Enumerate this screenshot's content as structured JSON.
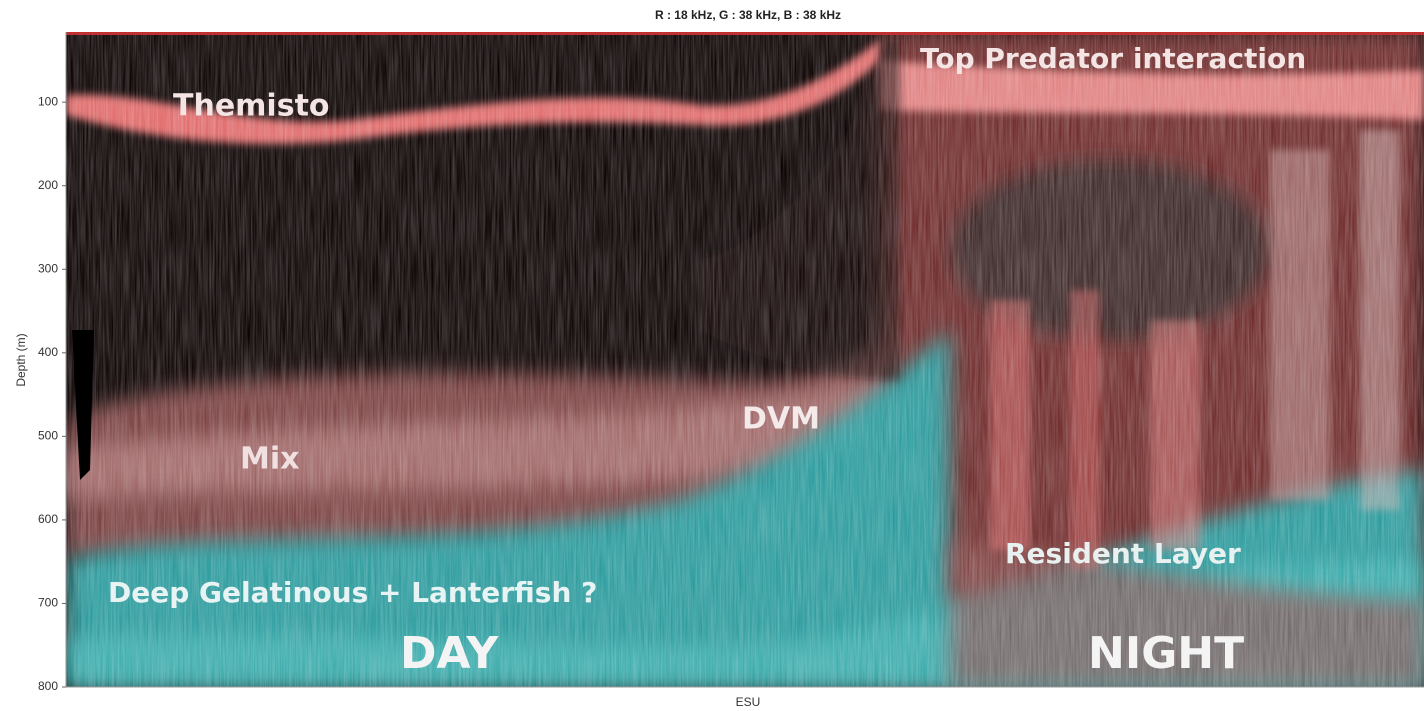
{
  "chart_data": {
    "type": "echogram",
    "title": "R : 18 kHz, G : 38 kHz, B : 38 kHz",
    "x_label": "ESU",
    "y_label": "Depth (m)",
    "ylim": [
      16,
      800
    ],
    "yticks": [
      100,
      200,
      300,
      400,
      500,
      600,
      700,
      800
    ],
    "y_reversed": true,
    "annotations": [
      "Themisto",
      "Top Predator interaction",
      "Mix",
      "DVM",
      "Resident Layer",
      "Deep Gelatinous + Lanterfish ?",
      "DAY",
      "NIGHT"
    ]
  }
}
